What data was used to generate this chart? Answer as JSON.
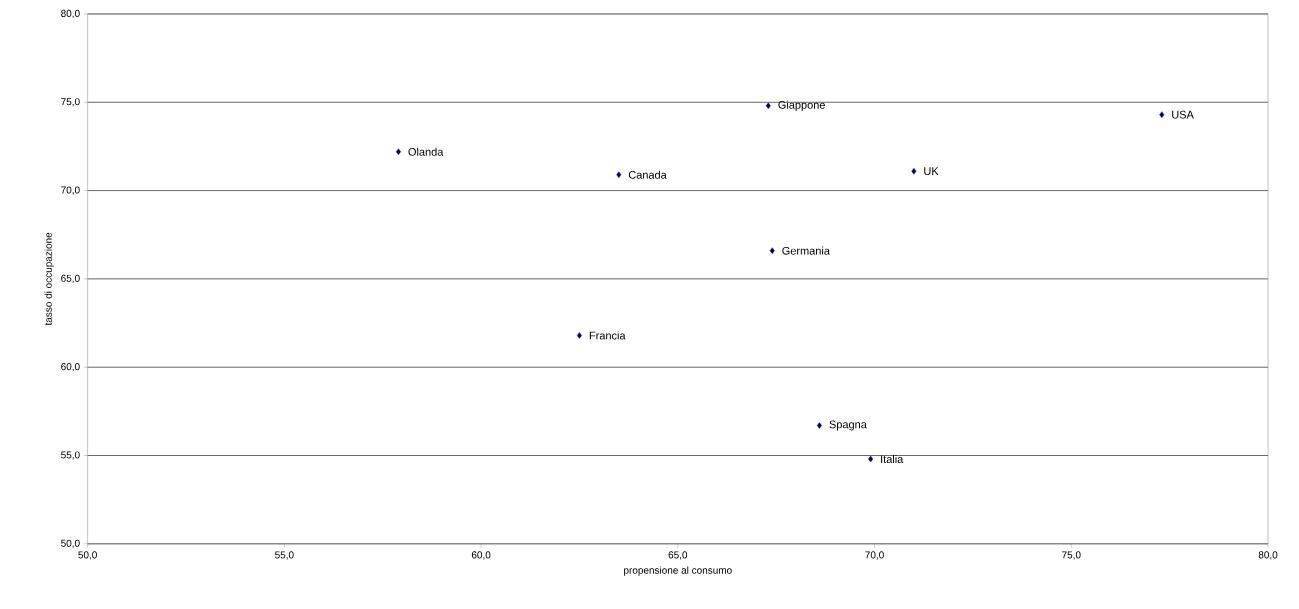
{
  "chart_data": {
    "type": "scatter",
    "xlabel": "propensione al consumo",
    "ylabel": "tasso di occupazione",
    "x": [
      57.9,
      63.5,
      67.3,
      77.3,
      71.0,
      67.4,
      62.5,
      68.6,
      69.9
    ],
    "values": [
      72.2,
      70.9,
      74.8,
      74.3,
      71.1,
      66.6,
      61.8,
      56.7,
      54.8
    ],
    "color": "#000066",
    "marker": "diamond",
    "grid": "y",
    "xlim": [
      50,
      80
    ],
    "ylim": [
      50,
      80
    ],
    "xticks": [
      {
        "value": 50,
        "label": "50,0"
      },
      {
        "value": 55,
        "label": "55,0"
      },
      {
        "value": 60,
        "label": "60,0"
      },
      {
        "value": 65,
        "label": "65,0"
      },
      {
        "value": 70,
        "label": "70,0"
      },
      {
        "value": 75,
        "label": "75,0"
      },
      {
        "value": 80,
        "label": "80,0"
      }
    ],
    "yticks": [
      {
        "value": 50,
        "label": "50,0"
      },
      {
        "value": 55,
        "label": "55,0"
      },
      {
        "value": 60,
        "label": "60,0"
      },
      {
        "value": 65,
        "label": "65,0"
      },
      {
        "value": 70,
        "label": "70,0"
      },
      {
        "value": 75,
        "label": "75,0"
      },
      {
        "value": 80,
        "label": "80,0"
      }
    ],
    "annotations": [
      {
        "text": "Olanda",
        "x": 57.9,
        "y": 72.2
      },
      {
        "text": "Canada",
        "x": 63.5,
        "y": 70.9
      },
      {
        "text": "Giappone",
        "x": 67.3,
        "y": 74.8
      },
      {
        "text": "USA",
        "x": 77.3,
        "y": 74.3
      },
      {
        "text": "UK",
        "x": 71.0,
        "y": 71.1
      },
      {
        "text": "Germania",
        "x": 67.4,
        "y": 66.6
      },
      {
        "text": "Francia",
        "x": 62.5,
        "y": 61.8
      },
      {
        "text": "Spagna",
        "x": 68.6,
        "y": 56.7
      },
      {
        "text": "Italia",
        "x": 69.9,
        "y": 54.8
      }
    ]
  }
}
